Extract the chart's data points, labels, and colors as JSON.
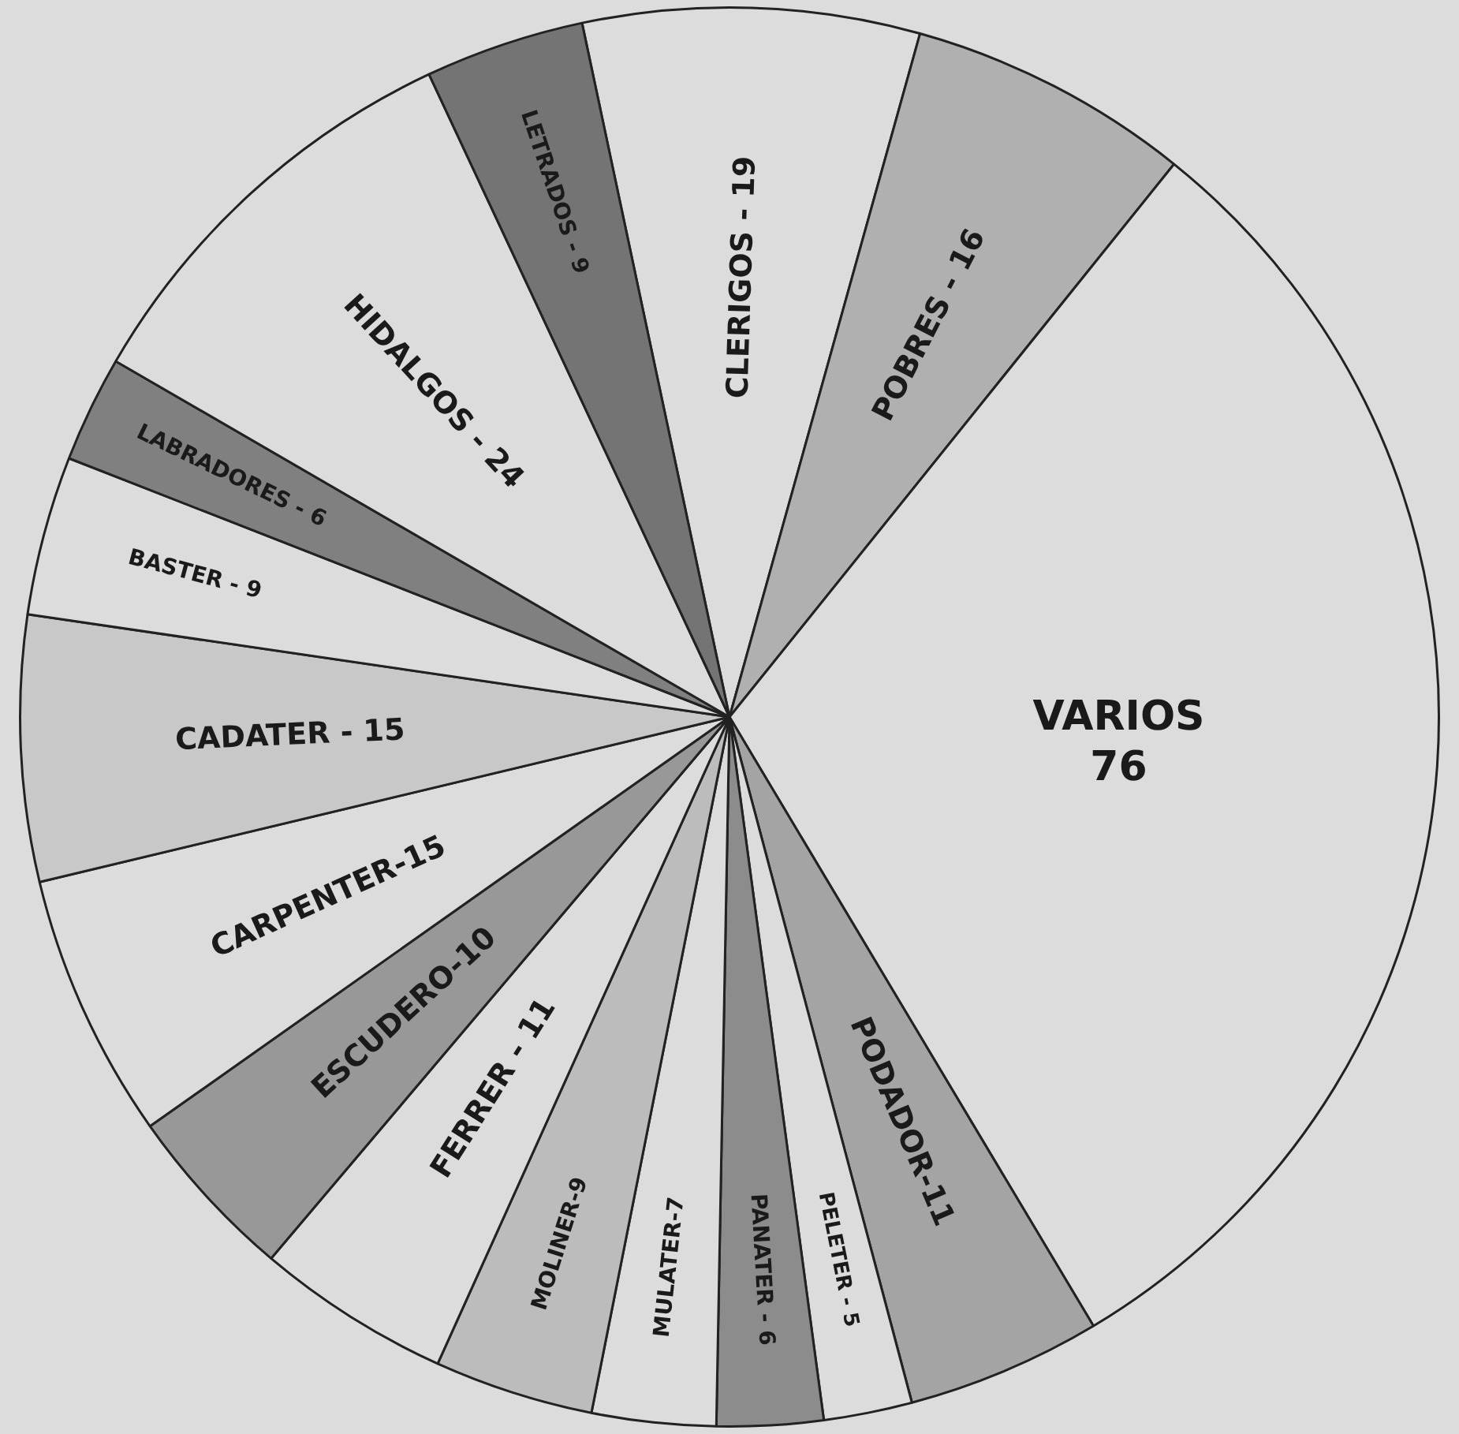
{
  "chart_data": {
    "type": "pie",
    "categories": [
      "CLERIGOS - 19",
      "POBRES - 16",
      "VARIOS 76",
      "PODADOR-11",
      "PELETER - 5",
      "PANATER - 6",
      "MULATER-7",
      "MOLINER-9",
      "FERRER - 11",
      "ESCUDERO-10",
      "CARPENTER-15",
      "CADATER - 15",
      "BASTER - 9",
      "LABRADORES - 6",
      "HIDALGOS - 24",
      "LETRADOS - 9"
    ],
    "values": [
      19,
      16,
      76,
      11,
      5,
      6,
      7,
      9,
      11,
      10,
      15,
      15,
      9,
      6,
      24,
      9
    ],
    "colors": [
      "#dcdcdc",
      "#b0b0b0",
      "#dcdcdc",
      "#a4a4a4",
      "#dcdcdc",
      "#8c8c8c",
      "#dcdcdc",
      "#bcbcbc",
      "#dcdcdc",
      "#989898",
      "#dcdcdc",
      "#c8c8c8",
      "#dcdcdc",
      "#808080",
      "#dcdcdc",
      "#747474"
    ],
    "legend": false
  }
}
